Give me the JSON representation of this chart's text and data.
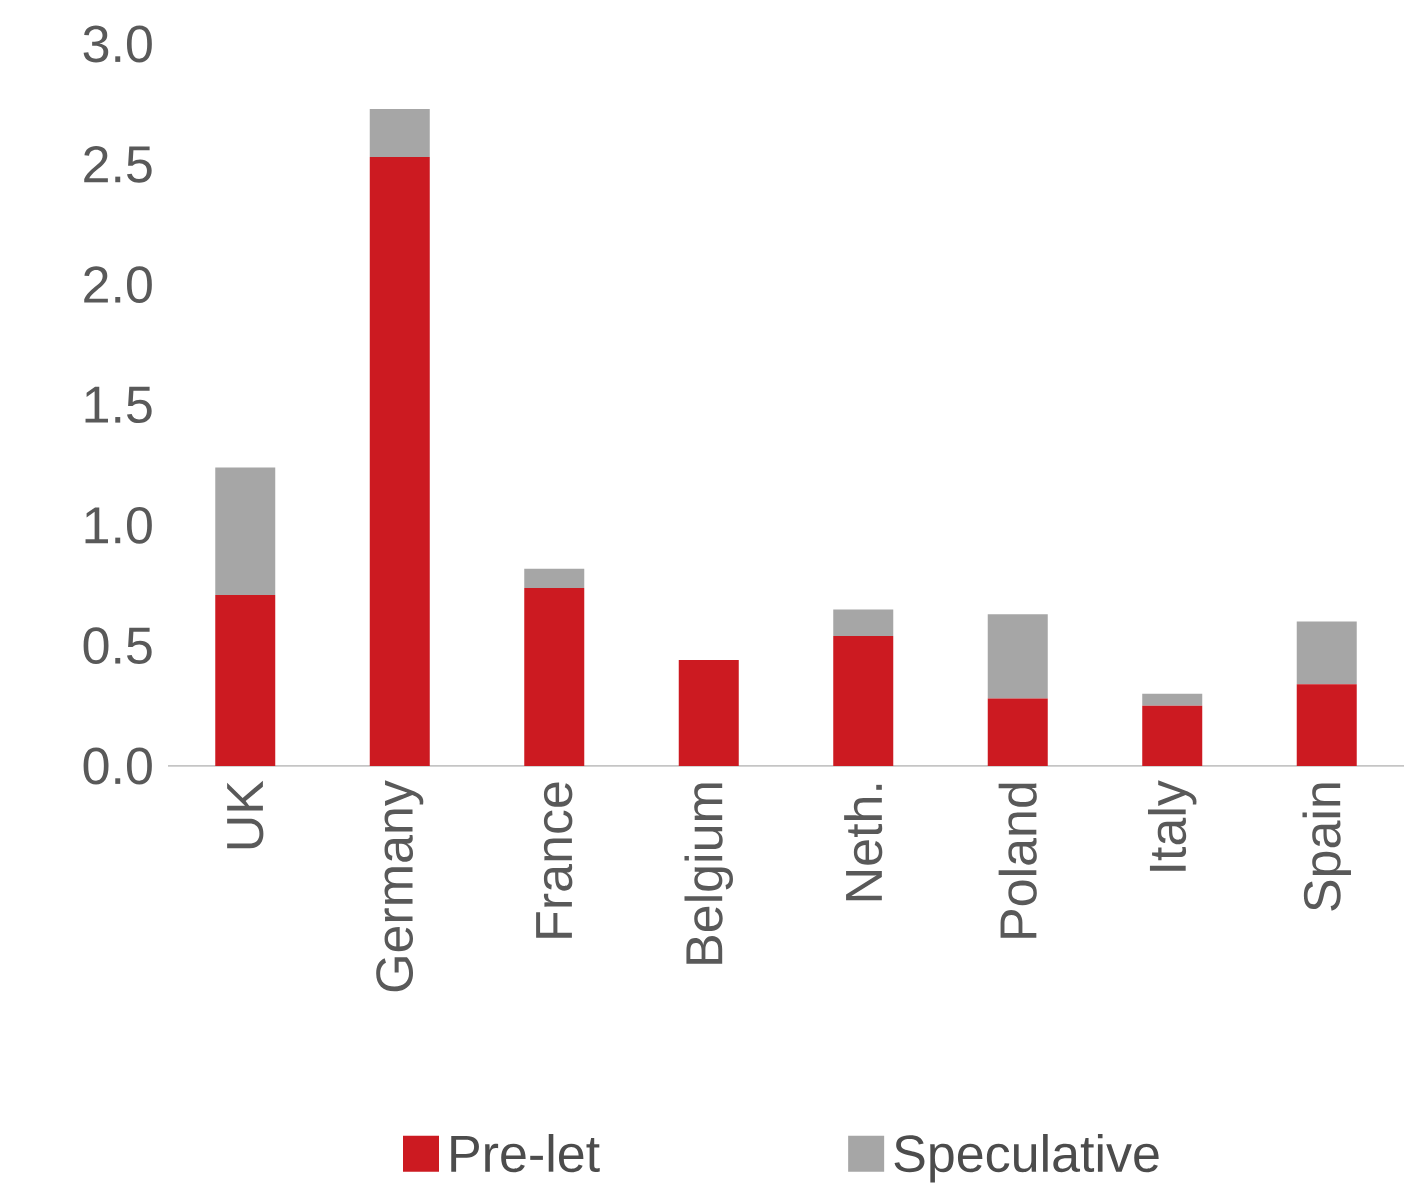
{
  "chart_data": {
    "type": "bar",
    "stacked": true,
    "legend": "bottom",
    "categories": [
      "UK",
      "Germany",
      "France",
      "Belgium",
      "Neth.",
      "Poland",
      "Italy",
      "Spain"
    ],
    "series": [
      {
        "name": "Pre-let",
        "color": "#cc1a21",
        "values": [
          0.71,
          2.53,
          0.74,
          0.44,
          0.54,
          0.28,
          0.25,
          0.34
        ]
      },
      {
        "name": "Speculative",
        "color": "#a6a6a6",
        "values": [
          0.53,
          0.2,
          0.08,
          0,
          0.11,
          0.35,
          0.05,
          0.26
        ]
      }
    ],
    "ylim": [
      0,
      3.0
    ],
    "yticks": [
      {
        "value": 0,
        "label": "0.0"
      },
      0.5,
      {
        "value": 1,
        "label": "1.0"
      },
      1.5,
      {
        "value": 2,
        "label": "2.0"
      },
      2.5,
      {
        "value": 3,
        "label": "3.0"
      }
    ]
  }
}
